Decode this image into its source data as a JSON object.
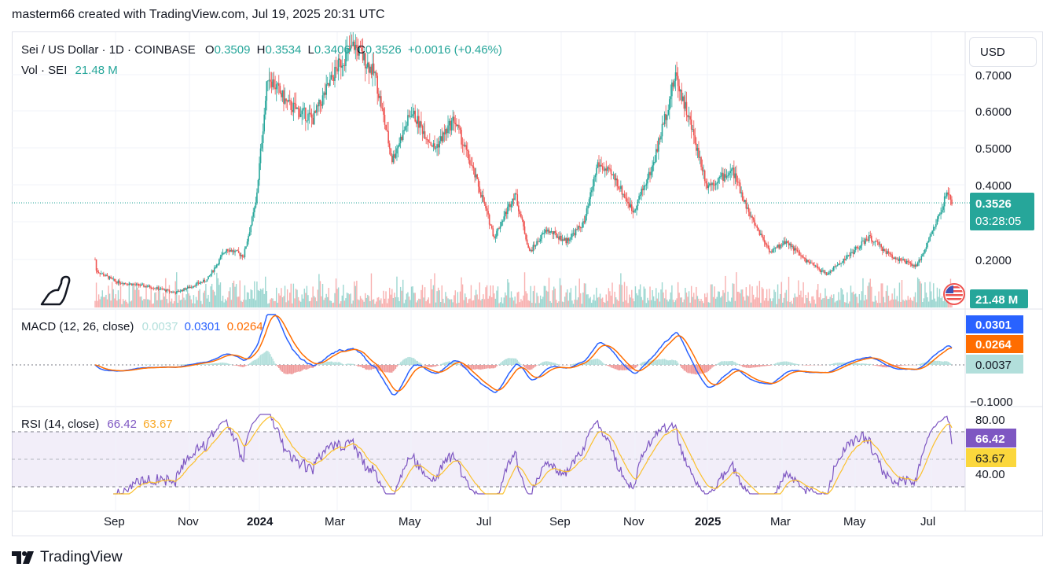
{
  "header": {
    "text": "masterm66 created with TradingView.com, Jul 19, 2025 20:31 UTC"
  },
  "footer": {
    "brand": "TradingView"
  },
  "currency_button": {
    "label": "USD"
  },
  "legend": {
    "symbol": "Sei / US Dollar · 1D · COINBASE",
    "o_label": "O",
    "o_value": "0.3509",
    "h_label": "H",
    "h_value": "0.3534",
    "l_label": "L",
    "l_value": "0.3406",
    "c_label": "C",
    "c_value": "0.3526",
    "change": "+0.0016 (+0.46%)",
    "vol_label": "Vol · SEI",
    "vol_value": "21.48 M",
    "macd_label": "MACD (12, 26, close)",
    "macd_hist": "0.0037",
    "macd_line": "0.0301",
    "macd_signal": "0.0264",
    "rsi_label": "RSI (14, close)",
    "rsi_value": "66.42",
    "rsi_ma": "63.67"
  },
  "colors": {
    "up": "#26a69a",
    "down": "#ef5350",
    "macd": "#2962ff",
    "signal": "#ff6d00",
    "rsi": "#7e57c2",
    "rsi_ma": "#fbc02d",
    "hist_up": "#b2dfdb",
    "hist_down": "#ef9a9a"
  },
  "badges": {
    "price": "0.3526",
    "countdown": "03:28:05",
    "volume": "21.48 M",
    "macd": "0.0301",
    "signal": "0.0264",
    "hist": "0.0037",
    "rsi": "66.42",
    "rsi_ma": "63.67"
  },
  "chart_data": {
    "type": "candlestick",
    "symbol": "SEIUSD",
    "x_tick_labels": [
      "Sep",
      "Nov",
      "2024",
      "Mar",
      "May",
      "Jul",
      "Sep",
      "Nov",
      "2025",
      "Mar",
      "May",
      "Jul"
    ],
    "price_axis_ticks": [
      "0.7000",
      "0.6000",
      "0.5000",
      "0.4000",
      "0.2000"
    ],
    "macd_axis_ticks": [
      "−0.1000"
    ],
    "rsi_axis_ticks": [
      "80.00",
      "40.00"
    ],
    "approx_close_path": [
      {
        "date": "2023-08-15",
        "close": 0.2
      },
      {
        "date": "2023-08-16",
        "close": 0.17
      },
      {
        "date": "2023-09-01",
        "close": 0.14
      },
      {
        "date": "2023-10-01",
        "close": 0.125
      },
      {
        "date": "2023-10-20",
        "close": 0.11
      },
      {
        "date": "2023-11-15",
        "close": 0.145
      },
      {
        "date": "2023-12-01",
        "close": 0.23
      },
      {
        "date": "2023-12-15",
        "close": 0.21
      },
      {
        "date": "2023-12-25",
        "close": 0.35
      },
      {
        "date": "2024-01-04",
        "close": 0.7
      },
      {
        "date": "2024-01-20",
        "close": 0.62
      },
      {
        "date": "2024-02-10",
        "close": 0.58
      },
      {
        "date": "2024-03-01",
        "close": 0.72
      },
      {
        "date": "2024-03-15",
        "close": 0.78
      },
      {
        "date": "2024-04-01",
        "close": 0.7
      },
      {
        "date": "2024-04-15",
        "close": 0.47
      },
      {
        "date": "2024-05-01",
        "close": 0.6
      },
      {
        "date": "2024-05-20",
        "close": 0.5
      },
      {
        "date": "2024-06-05",
        "close": 0.58
      },
      {
        "date": "2024-06-25",
        "close": 0.4
      },
      {
        "date": "2024-07-08",
        "close": 0.26
      },
      {
        "date": "2024-07-25",
        "close": 0.38
      },
      {
        "date": "2024-08-06",
        "close": 0.22
      },
      {
        "date": "2024-08-20",
        "close": 0.28
      },
      {
        "date": "2024-09-05",
        "close": 0.25
      },
      {
        "date": "2024-09-20",
        "close": 0.3
      },
      {
        "date": "2024-10-01",
        "close": 0.46
      },
      {
        "date": "2024-10-15",
        "close": 0.42
      },
      {
        "date": "2024-10-30",
        "close": 0.33
      },
      {
        "date": "2024-11-15",
        "close": 0.45
      },
      {
        "date": "2024-12-04",
        "close": 0.7
      },
      {
        "date": "2024-12-15",
        "close": 0.58
      },
      {
        "date": "2024-12-30",
        "close": 0.4
      },
      {
        "date": "2025-01-20",
        "close": 0.44
      },
      {
        "date": "2025-02-03",
        "close": 0.32
      },
      {
        "date": "2025-02-20",
        "close": 0.22
      },
      {
        "date": "2025-03-05",
        "close": 0.25
      },
      {
        "date": "2025-03-20",
        "close": 0.2
      },
      {
        "date": "2025-04-07",
        "close": 0.16
      },
      {
        "date": "2025-04-25",
        "close": 0.21
      },
      {
        "date": "2025-05-12",
        "close": 0.26
      },
      {
        "date": "2025-05-30",
        "close": 0.21
      },
      {
        "date": "2025-06-20",
        "close": 0.18
      },
      {
        "date": "2025-07-01",
        "close": 0.26
      },
      {
        "date": "2025-07-10",
        "close": 0.33
      },
      {
        "date": "2025-07-15",
        "close": 0.38
      },
      {
        "date": "2025-07-19",
        "close": 0.3526
      }
    ]
  }
}
